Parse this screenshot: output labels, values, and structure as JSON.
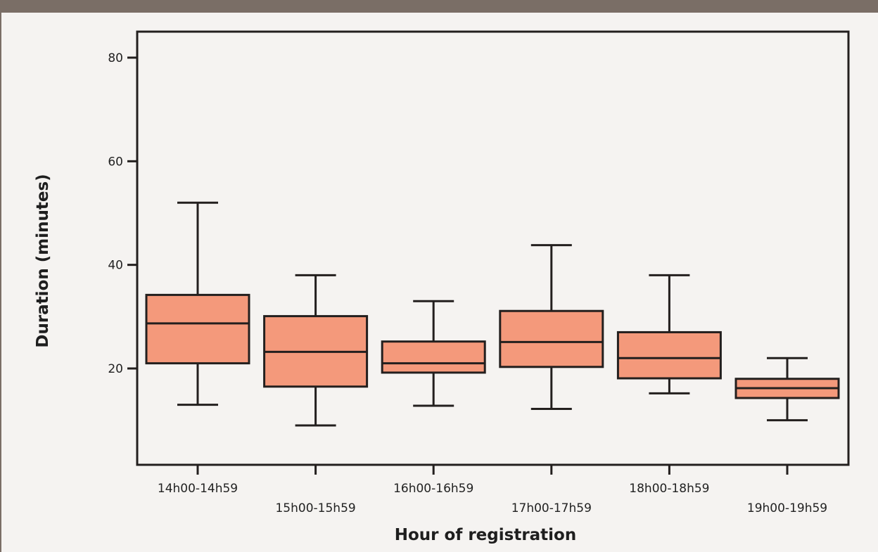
{
  "chart_data": {
    "type": "box",
    "xlabel": "Hour of registration",
    "ylabel": "Duration (minutes)",
    "ylim": [
      0,
      85
    ],
    "yticks": [
      20,
      40,
      60,
      80
    ],
    "grid": false,
    "box_color": "#f4997b",
    "stroke_color": "#231f1e",
    "categories": [
      "14h00-14h59",
      "15h00-15h59",
      "16h00-16h59",
      "17h00-17h59",
      "18h00-18h59",
      "19h00-19h59"
    ],
    "boxes": [
      {
        "min": 13,
        "q1": 21,
        "median": 28.7,
        "q3": 34.2,
        "max": 52
      },
      {
        "min": 9,
        "q1": 16.5,
        "median": 23.2,
        "q3": 30.1,
        "max": 38
      },
      {
        "min": 12.8,
        "q1": 19.2,
        "median": 21,
        "q3": 25.2,
        "max": 33
      },
      {
        "min": 12.2,
        "q1": 20.3,
        "median": 25.1,
        "q3": 31.1,
        "max": 43.8
      },
      {
        "min": 15.2,
        "q1": 18.1,
        "median": 22,
        "q3": 27,
        "max": 38
      },
      {
        "min": 10,
        "q1": 14.3,
        "median": 16.2,
        "q3": 18,
        "max": 22
      }
    ]
  }
}
